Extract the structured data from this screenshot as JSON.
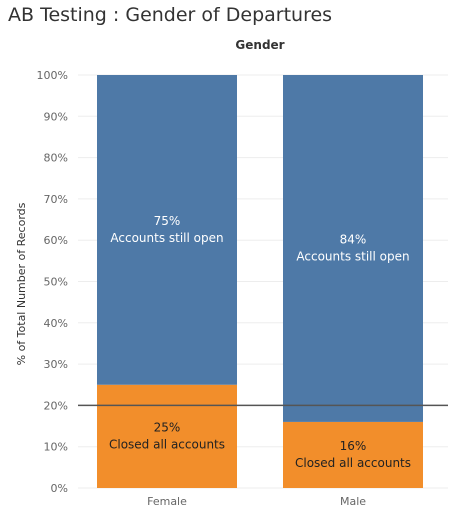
{
  "title": "AB Testing : Gender of Departures",
  "chart_data": {
    "type": "bar",
    "stacked": true,
    "column_header": "Gender",
    "ylabel": "% of Total Number of Records",
    "xlabel": "",
    "ylim": [
      0,
      100
    ],
    "yticks": [
      "0%",
      "10%",
      "20%",
      "30%",
      "40%",
      "50%",
      "60%",
      "70%",
      "80%",
      "90%",
      "100%"
    ],
    "categories": [
      "Female",
      "Male"
    ],
    "series": [
      {
        "name": "Closed all accounts",
        "color": "#F28E2B",
        "values": [
          25,
          16
        ],
        "labels": [
          "25%",
          "16%"
        ],
        "text": "Closed all accounts"
      },
      {
        "name": "Accounts still open",
        "color": "#4E79A7",
        "values": [
          75,
          84
        ],
        "labels": [
          "75%",
          "84%"
        ],
        "text": "Accounts still open"
      }
    ],
    "reference_line": {
      "value": 20,
      "color": "#555555"
    },
    "grid": true
  }
}
